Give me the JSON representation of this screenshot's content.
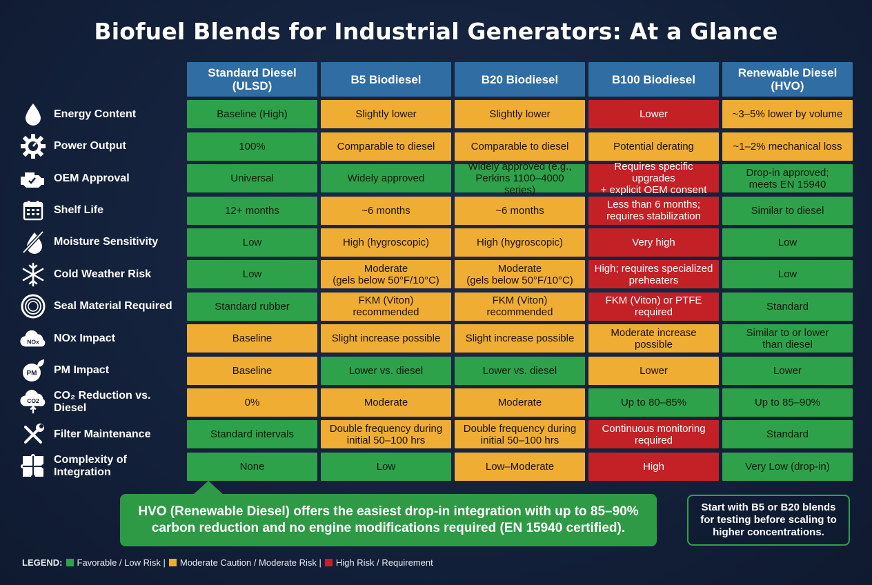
{
  "title": "Biofuel Blends for Industrial Generators: At a Glance",
  "columns": [
    "Standard Diesel\n(ULSD)",
    "B5 Biodiesel",
    "B20 Biodiesel",
    "B100 Biodiesel",
    "Renewable Diesel\n(HVO)"
  ],
  "rows": [
    {
      "label": "Energy Content",
      "icon": "droplet-icon",
      "cells": [
        [
          "Baseline (High)",
          "g"
        ],
        [
          "Slightly lower",
          "o"
        ],
        [
          "Slightly lower",
          "o"
        ],
        [
          "Lower",
          "r"
        ],
        [
          "~3–5% lower by volume",
          "o"
        ]
      ]
    },
    {
      "label": "Power Output",
      "icon": "gear-gauge-icon",
      "cells": [
        [
          "100%",
          "g"
        ],
        [
          "Comparable to diesel",
          "o"
        ],
        [
          "Comparable to diesel",
          "o"
        ],
        [
          "Potential derating",
          "o"
        ],
        [
          "~1–2% mechanical loss",
          "o"
        ]
      ]
    },
    {
      "label": "OEM Approval",
      "icon": "engine-icon",
      "cells": [
        [
          "Universal",
          "g"
        ],
        [
          "Widely approved",
          "g"
        ],
        [
          "Widely approved (e.g.,\nPerkins 1100–4000 series)",
          "g"
        ],
        [
          "Requires specific upgrades\n+ explicit OEM consent",
          "r"
        ],
        [
          "Drop-in approved;\nmeets EN 15940",
          "g"
        ]
      ]
    },
    {
      "label": "Shelf Life",
      "icon": "calendar-icon",
      "cells": [
        [
          "12+ months",
          "g"
        ],
        [
          "~6 months",
          "o"
        ],
        [
          "~6 months",
          "o"
        ],
        [
          "Less than 6 months;\nrequires stabilization",
          "r"
        ],
        [
          "Similar to diesel",
          "g"
        ]
      ]
    },
    {
      "label": "Moisture Sensitivity",
      "icon": "no-water-icon",
      "cells": [
        [
          "Low",
          "g"
        ],
        [
          "High (hygroscopic)",
          "o"
        ],
        [
          "High (hygroscopic)",
          "o"
        ],
        [
          "Very high",
          "r"
        ],
        [
          "Low",
          "g"
        ]
      ]
    },
    {
      "label": "Cold Weather Risk",
      "icon": "snowflake-icon",
      "cells": [
        [
          "Low",
          "g"
        ],
        [
          "Moderate\n(gels below 50°F/10°C)",
          "o"
        ],
        [
          "Moderate\n(gels below 50°F/10°C)",
          "o"
        ],
        [
          "High; requires specialized\npreheaters",
          "r"
        ],
        [
          "Low",
          "g"
        ]
      ]
    },
    {
      "label": "Seal Material Required",
      "icon": "seal-ring-icon",
      "cells": [
        [
          "Standard rubber",
          "g"
        ],
        [
          "FKM (Viton) recommended",
          "o"
        ],
        [
          "FKM (Viton) recommended",
          "o"
        ],
        [
          "FKM (Viton) or PTFE\nrequired",
          "r"
        ],
        [
          "Standard",
          "g"
        ]
      ]
    },
    {
      "label": "NOx Impact",
      "icon": "nox-cloud-icon",
      "cells": [
        [
          "Baseline",
          "o"
        ],
        [
          "Slight increase possible",
          "o"
        ],
        [
          "Slight increase possible",
          "o"
        ],
        [
          "Moderate increase\npossible",
          "o"
        ],
        [
          "Similar to or lower\nthan diesel",
          "g"
        ]
      ]
    },
    {
      "label": "PM Impact",
      "icon": "pm-leaf-icon",
      "cells": [
        [
          "Baseline",
          "o"
        ],
        [
          "Lower vs. diesel",
          "g"
        ],
        [
          "Lower vs. diesel",
          "g"
        ],
        [
          "Lower",
          "o"
        ],
        [
          "Lower",
          "g"
        ]
      ]
    },
    {
      "label": "CO₂ Reduction vs. Diesel",
      "icon": "co2-cloud-icon",
      "cells": [
        [
          "0%",
          "o"
        ],
        [
          "Moderate",
          "o"
        ],
        [
          "Moderate",
          "o"
        ],
        [
          "Up to 80–85%",
          "g"
        ],
        [
          "Up to 85–90%",
          "g"
        ]
      ]
    },
    {
      "label": "Filter Maintenance",
      "icon": "wrench-screwdriver-icon",
      "cells": [
        [
          "Standard intervals",
          "g"
        ],
        [
          "Double frequency during\ninitial 50–100 hrs",
          "o"
        ],
        [
          "Double frequency during\ninitial 50–100 hrs",
          "o"
        ],
        [
          "Continuous monitoring\nrequired",
          "r"
        ],
        [
          "Standard",
          "g"
        ]
      ]
    },
    {
      "label": "Complexity of\nIntegration",
      "icon": "puzzle-icon",
      "cells": [
        [
          "None",
          "g"
        ],
        [
          "Low",
          "g"
        ],
        [
          "Low–Moderate",
          "o"
        ],
        [
          "High",
          "r"
        ],
        [
          "Very Low (drop-in)",
          "g"
        ]
      ]
    }
  ],
  "callout": "HVO (Renewable Diesel) offers the easiest drop-in integration with up to 85–90%\ncarbon reduction and no engine modifications required (EN 15940 certified).",
  "tip": "Start with B5 or B20 blends\nfor testing before scaling to\nhigher concentrations.",
  "legend": {
    "label": "LEGEND:",
    "favorable": "Favorable / Low Risk |",
    "moderate": "Moderate Caution / Moderate Risk |",
    "high": "High Risk / Requirement"
  },
  "colors": {
    "favorable": "#2ea24a",
    "moderate": "#f0ad33",
    "high": "#c42127",
    "header": "#2f6da3",
    "background": "#14213b"
  }
}
